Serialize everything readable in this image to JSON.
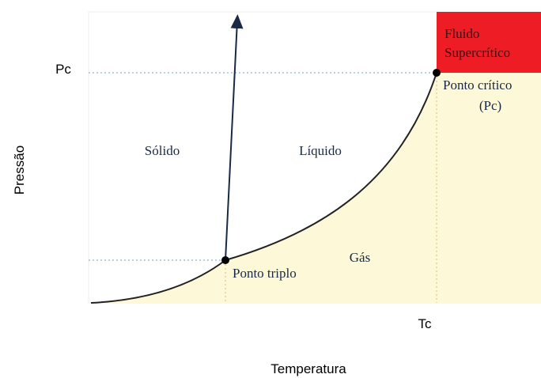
{
  "axes": {
    "y_label": "Pressão",
    "x_label": "Temperatura",
    "y_marker": "Pc",
    "x_marker": "Tc"
  },
  "regions": {
    "solid": "Sólido",
    "liquid": "Líquido",
    "gas": "Gás",
    "supercritical": [
      "Fluido",
      "Supercrítico"
    ]
  },
  "points": {
    "triple": "Ponto triplo",
    "critical": [
      "Ponto crítico",
      "(Pc)"
    ]
  }
}
